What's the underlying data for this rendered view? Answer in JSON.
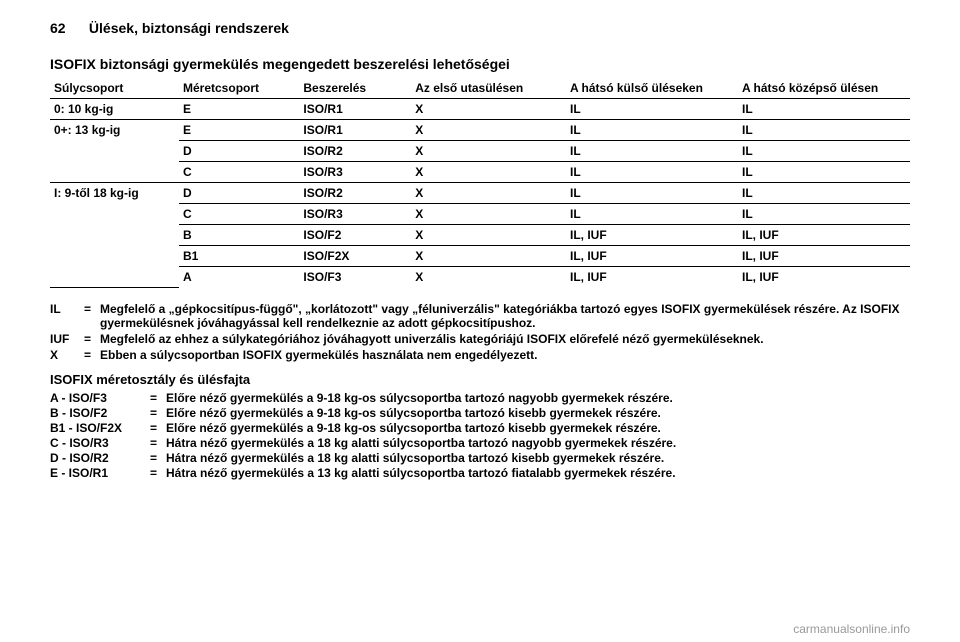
{
  "header": {
    "page": "62",
    "section": "Ülések, biztonsági rendszerek"
  },
  "title": "ISOFIX biztonsági gyermekülés megengedett beszerelési lehetőségei",
  "columns": {
    "weight": "Súlycsoport",
    "size": "Méretcsoport",
    "fixture": "Beszerelés",
    "front": "Az első utasülésen",
    "rear_outer": "A hátsó külső üléseken",
    "rear_center": "A hátsó középső ülésen"
  },
  "rows": [
    {
      "weight": "0: 10 kg-ig",
      "size": "E",
      "fix": "ISO/R1",
      "front": "X",
      "rear_outer": "IL",
      "rear_center": "IL"
    },
    {
      "weight": "0+: 13 kg-ig",
      "size": "E",
      "fix": "ISO/R1",
      "front": "X",
      "rear_outer": "IL",
      "rear_center": "IL"
    },
    {
      "weight": "",
      "size": "D",
      "fix": "ISO/R2",
      "front": "X",
      "rear_outer": "IL",
      "rear_center": "IL"
    },
    {
      "weight": "",
      "size": "C",
      "fix": "ISO/R3",
      "front": "X",
      "rear_outer": "IL",
      "rear_center": "IL"
    },
    {
      "weight": "I: 9-től 18 kg-ig",
      "size": "D",
      "fix": "ISO/R2",
      "front": "X",
      "rear_outer": "IL",
      "rear_center": "IL"
    },
    {
      "weight": "",
      "size": "C",
      "fix": "ISO/R3",
      "front": "X",
      "rear_outer": "IL",
      "rear_center": "IL"
    },
    {
      "weight": "",
      "size": "B",
      "fix": "ISO/F2",
      "front": "X",
      "rear_outer": "IL, IUF",
      "rear_center": "IL, IUF"
    },
    {
      "weight": "",
      "size": "B1",
      "fix": "ISO/F2X",
      "front": "X",
      "rear_outer": "IL, IUF",
      "rear_center": "IL, IUF"
    },
    {
      "weight": "",
      "size": "A",
      "fix": "ISO/F3",
      "front": "X",
      "rear_outer": "IL, IUF",
      "rear_center": "IL, IUF"
    }
  ],
  "legend": [
    {
      "key": "IL",
      "text": "Megfelelő a „gépkocsitípus-függő\", „korlátozott\" vagy „féluniverzális\" kategóriákba tartozó egyes ISOFIX gyermekülések részére. Az ISOFIX gyermekülésnek jóváhagyással kell rendelkeznie az adott gépkocsitípushoz."
    },
    {
      "key": "IUF",
      "text": "Megfelelő az ehhez a súlykategóriához jóváhagyott univerzális kategóriájú ISOFIX előrefelé néző gyermeküléseknek."
    },
    {
      "key": "X",
      "text": "Ebben a súlycsoportban ISOFIX gyermekülés használata nem engedélyezett."
    }
  ],
  "subtitle": "ISOFIX méretosztály és ülésfajta",
  "sizeclasses": [
    {
      "key": "A - ISO/F3",
      "text": "Előre néző gyermekülés a 9-18 kg-os súlycsoportba tartozó nagyobb gyermekek részére."
    },
    {
      "key": "B - ISO/F2",
      "text": "Előre néző gyermekülés a 9-18 kg-os súlycsoportba tartozó kisebb gyermekek részére."
    },
    {
      "key": "B1 - ISO/F2X",
      "text": "Előre néző gyermekülés a 9-18 kg-os súlycsoportba tartozó kisebb gyermekek részére."
    },
    {
      "key": "C - ISO/R3",
      "text": "Hátra néző gyermekülés a 18 kg alatti súlycsoportba tartozó nagyobb gyermekek részére."
    },
    {
      "key": "D - ISO/R2",
      "text": "Hátra néző gyermekülés a 18 kg alatti súlycsoportba tartozó kisebb gyermekek részére."
    },
    {
      "key": "E - ISO/R1",
      "text": "Hátra néző gyermekülés a 13 kg alatti súlycsoportba tartozó fiatalabb gyermekek részére."
    }
  ],
  "watermark": "carmanualsonline.info"
}
